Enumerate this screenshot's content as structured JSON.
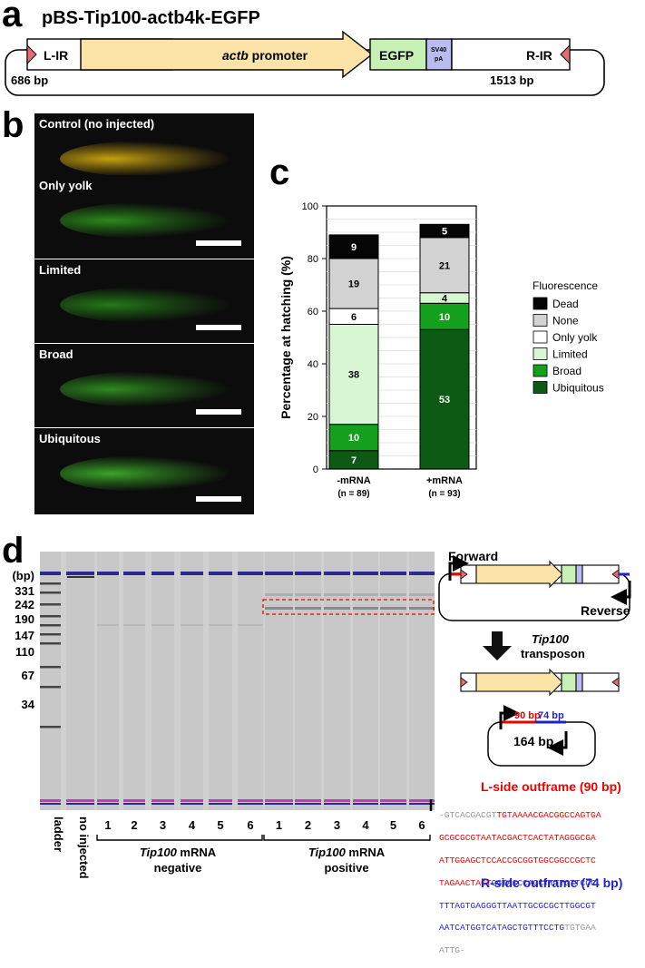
{
  "panel_a": {
    "label": "a",
    "title": "pBS-Tip100-actb4k-EGFP",
    "segments": {
      "lir": "L-IR",
      "promoter_italic": "actb",
      "promoter_rest": " promoter",
      "egfp": "EGFP",
      "sv40_1": "SV40",
      "sv40_2": "pA",
      "rir": "R-IR"
    },
    "left_bp": "686 bp",
    "right_bp": "1513 bp",
    "colors": {
      "promoter": "#fce4a8",
      "egfp": "#c6f0b4",
      "sv40": "#b8bcee",
      "ir": "#e76b72"
    }
  },
  "panel_b": {
    "label": "b",
    "images": [
      {
        "label": "Control (no injected)",
        "glow": "#c8a010"
      },
      {
        "label": "Only yolk",
        "glow": "#2c8a1c"
      },
      {
        "label": "Limited",
        "glow": "#247a18"
      },
      {
        "label": "Broad",
        "glow": "#2e8a20"
      },
      {
        "label": "Ubiquitous",
        "glow": "#3aa428"
      }
    ]
  },
  "panel_c": {
    "label": "c"
  },
  "chart_data": {
    "type": "bar",
    "stacked": true,
    "categories": [
      "-mRNA",
      "+mRNA"
    ],
    "category_sublabels": [
      "(n = 89)",
      "(n = 93)"
    ],
    "ylabel": "Percentage at hatching (%)",
    "ylim": [
      0,
      100
    ],
    "yticks": [
      "0",
      "20",
      "40",
      "60",
      "80",
      "100"
    ],
    "grid": true,
    "legend_title": "Fluorescence",
    "legend_position": "right",
    "series": [
      {
        "name": "Ubiquitous",
        "color": "#0c5a14",
        "values": [
          7,
          53
        ],
        "label_color": "#ffffff"
      },
      {
        "name": "Broad",
        "color": "#14a01c",
        "values": [
          10,
          10
        ],
        "label_color": "#ffffff"
      },
      {
        "name": "Limited",
        "color": "#d8f6d4",
        "values": [
          38,
          4
        ],
        "label_color": "#000000"
      },
      {
        "name": "Only yolk",
        "color": "#ffffff",
        "values": [
          6,
          0
        ],
        "label_color": "#000000"
      },
      {
        "name": "None",
        "color": "#d2d2d2",
        "values": [
          19,
          21
        ],
        "label_color": "#000000"
      },
      {
        "name": "Dead",
        "color": "#050505",
        "values": [
          9,
          5
        ],
        "label_color": "#ffffff"
      }
    ],
    "bar_labels": [
      [
        "7",
        "10",
        "38",
        "6",
        "19",
        "9"
      ],
      [
        "53",
        "10",
        "4",
        "",
        "21",
        "5"
      ]
    ]
  },
  "panel_d": {
    "label": "d",
    "bp_header": "(bp)",
    "ladder_sizes": [
      "331",
      "242",
      "190",
      "147",
      "110",
      "67",
      "34"
    ],
    "lane_labels": {
      "ladder": "ladder",
      "no_injected": "no injected",
      "numbers": [
        "1",
        "2",
        "3",
        "4",
        "5",
        "6"
      ]
    },
    "group_negative": {
      "italic": "Tip100",
      "rest": " mRNA",
      "line2": "negative"
    },
    "group_positive": {
      "italic": "Tip100",
      "rest": " mRNA",
      "line2": "positive"
    },
    "forward": "Forward",
    "reverse": "Reverse",
    "transposon_italic": "Tip100",
    "transposon_rest": "transposon",
    "bp_90": "90 bp",
    "bp_74": "74 bp",
    "bp_164": "164 bp",
    "l_side_title": "L-side outframe (90 bp)",
    "r_side_title": "R-side outframe (74 bp)",
    "seq": {
      "l1_gray": "-GTCACGACGT",
      "l1_red": "TGTAAAACGACGGCCAGTGA",
      "l2_red": "GCGCGCGTAATACGACTCACTATAGGGCGA",
      "l3_red": "ATTGGAGCTCCACCGCGGTGGCGGCCGCTC",
      "l4_red": "TAGAACTAGT",
      "l4_blue": "GGTACCCAGCTTTTGTTCCC",
      "l5_blue": "TTTAGTGAGGGTTAATTGCGCGCTTGGCGT",
      "l6_blue": "AATCATGGTCATAGCTGTTTCCTG",
      "l6_gray": "TGTGAA",
      "l7_gray": "ATTG-"
    }
  }
}
